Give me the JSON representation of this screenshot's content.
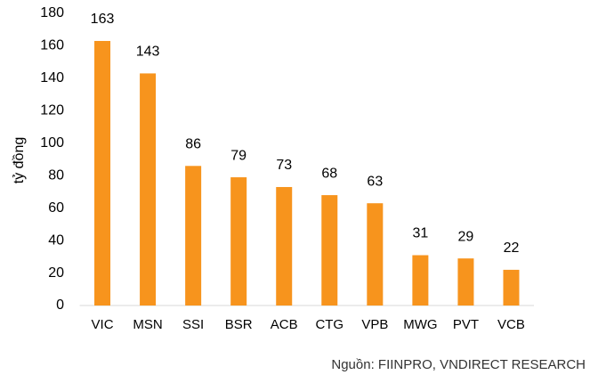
{
  "chart_data": {
    "type": "bar",
    "ylabel": "tỷ đồng",
    "categories": [
      "VIC",
      "MSN",
      "SSI",
      "BSR",
      "ACB",
      "CTG",
      "VPB",
      "MWG",
      "PVT",
      "VCB"
    ],
    "values": [
      163,
      143,
      86,
      79,
      73,
      68,
      63,
      31,
      29,
      22
    ],
    "color": "#f7941d",
    "ylim": [
      0,
      180
    ],
    "yticks": [
      0,
      20,
      40,
      60,
      80,
      100,
      120,
      140,
      160,
      180
    ],
    "grid": false,
    "source": "Nguồn: FIINPRO, VNDIRECT RESEARCH"
  }
}
